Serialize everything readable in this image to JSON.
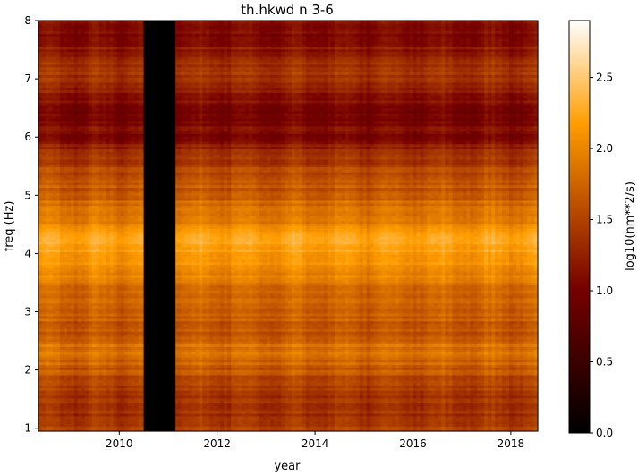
{
  "chart_data": {
    "type": "heatmap",
    "title": "th.hkwd n 3-6",
    "xlabel": "year",
    "ylabel": "freq (Hz)",
    "xlim": [
      2008.35,
      2018.55
    ],
    "ylim": [
      0.95,
      8.0
    ],
    "x_ticks": [
      2010,
      2012,
      2014,
      2016,
      2018
    ],
    "y_ticks": [
      1,
      2,
      3,
      4,
      5,
      6,
      7,
      8
    ],
    "colormap": "gist_heat",
    "colorbar": {
      "label": "log10(nm**2/s)",
      "range": [
        0.0,
        2.9
      ],
      "ticks": [
        "0.0",
        "0.5",
        "1.0",
        "1.5",
        "2.0",
        "2.5"
      ],
      "tick_values": [
        0.0,
        0.5,
        1.0,
        1.5,
        2.0,
        2.5
      ]
    },
    "data_gap": {
      "x_start": 2010.5,
      "x_end": 2011.15,
      "value": 0.0
    },
    "frequency_profile": [
      {
        "freq": 0.95,
        "value": 1.55
      },
      {
        "freq": 1.3,
        "value": 1.35
      },
      {
        "freq": 1.6,
        "value": 1.45
      },
      {
        "freq": 2.0,
        "value": 1.65
      },
      {
        "freq": 2.3,
        "value": 1.9
      },
      {
        "freq": 2.6,
        "value": 1.65
      },
      {
        "freq": 3.0,
        "value": 1.7
      },
      {
        "freq": 3.5,
        "value": 1.9
      },
      {
        "freq": 4.1,
        "value": 2.25
      },
      {
        "freq": 4.6,
        "value": 1.95
      },
      {
        "freq": 5.0,
        "value": 1.7
      },
      {
        "freq": 5.5,
        "value": 1.5
      },
      {
        "freq": 6.0,
        "value": 1.1
      },
      {
        "freq": 6.5,
        "value": 1.05
      },
      {
        "freq": 7.0,
        "value": 1.45
      },
      {
        "freq": 7.5,
        "value": 1.2
      },
      {
        "freq": 8.0,
        "value": 1.05
      }
    ],
    "grid": false
  },
  "colors": {
    "gap": "#000000",
    "axes": "#000000"
  }
}
